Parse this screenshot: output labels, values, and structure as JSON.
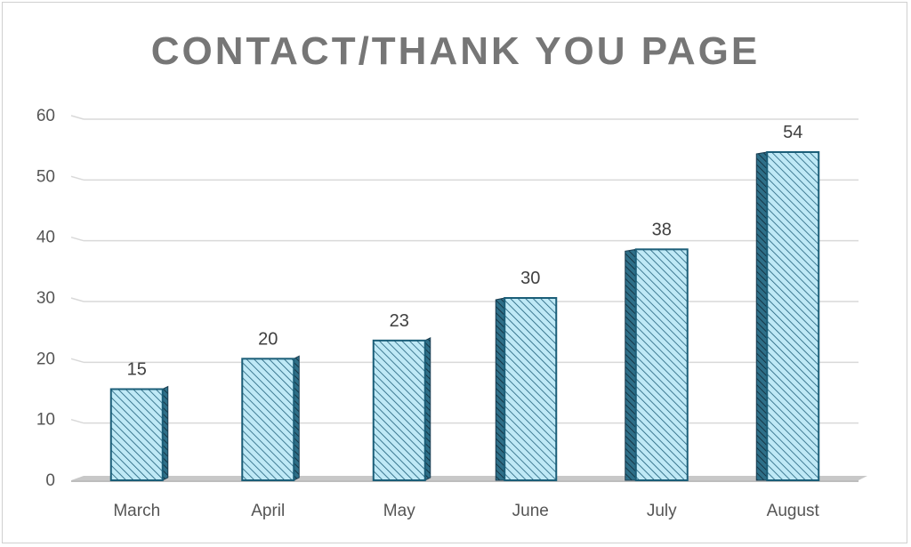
{
  "chart_data": {
    "type": "bar",
    "title": "CONTACT/THANK YOU PAGE",
    "categories": [
      "March",
      "April",
      "May",
      "June",
      "July",
      "August"
    ],
    "values": [
      15,
      20,
      23,
      30,
      38,
      54
    ],
    "ylim": [
      0,
      60
    ],
    "yticks": [
      0,
      10,
      20,
      30,
      40,
      50,
      60
    ],
    "grid": true,
    "legend": "none",
    "data_labels": true,
    "colors": {
      "bar_fill": "#bfe9f6",
      "bar_hatch": "#1f5f7a",
      "bar_border": "#1b5e78",
      "bar_side": "#1c3f52",
      "grid": "#d9d9d9",
      "floor": "#c8c8c8"
    }
  }
}
